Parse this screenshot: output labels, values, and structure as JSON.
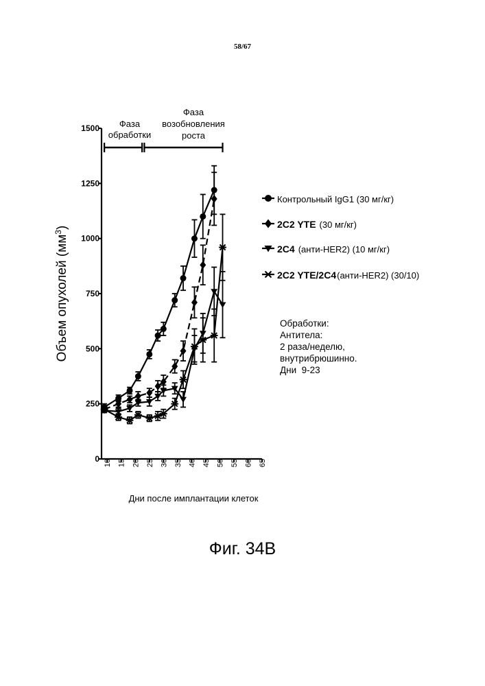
{
  "page_number": "58/67",
  "figure_caption": "Фиг. 34В",
  "notes": {
    "line1": "Обработки:",
    "line2": "Антитела:",
    "line3": "2 раза/неделю,",
    "line4": "внутрибрюшинно.",
    "line5_a": "Дни",
    "line5_b": "9-23"
  },
  "phases": {
    "treatment_line1": "Фаза",
    "treatment_line2": "обработки",
    "regrowth_line1": "Фаза",
    "regrowth_line2": "возобновления",
    "regrowth_line3": "роста",
    "treatment_days": [
      9,
      23
    ],
    "regrowth_days": [
      23,
      51
    ]
  },
  "chart_data": {
    "type": "line",
    "xlabel": "Дни после имплантации клеток",
    "ylabel": "Объем опухолей (мм³)",
    "ylabel_main": "Объем опухолей (мм",
    "ylabel_sup": "3",
    "ylabel_close": ")",
    "xlim": [
      8,
      65
    ],
    "ylim": [
      0,
      1500
    ],
    "xticks": [
      10,
      15,
      20,
      25,
      30,
      35,
      40,
      45,
      50,
      55,
      60,
      65
    ],
    "yticks": [
      0,
      250,
      500,
      750,
      1000,
      1250,
      1500
    ],
    "grid": false,
    "legend_position": "right",
    "series": [
      {
        "legend_main": "Контрольный IgG1 (30 мг/кг)",
        "legend_rest": "",
        "marker": "circle",
        "dash": false,
        "x": [
          9,
          14,
          18,
          21,
          25,
          28,
          30,
          34,
          37,
          41,
          44,
          48
        ],
        "y": [
          235,
          275,
          310,
          375,
          475,
          560,
          590,
          720,
          820,
          1000,
          1100,
          1220
        ],
        "err": [
          15,
          15,
          15,
          20,
          20,
          25,
          30,
          30,
          55,
          85,
          100,
          110
        ]
      },
      {
        "legend_main": "2C2 YTE",
        "legend_rest": "(30 мг/кг)",
        "marker": "diamond",
        "dash": true,
        "x": [
          9,
          14,
          18,
          21,
          25,
          28,
          30,
          34,
          37,
          41,
          44,
          48
        ],
        "y": [
          225,
          250,
          270,
          285,
          300,
          330,
          350,
          420,
          490,
          710,
          880,
          1180
        ],
        "err": [
          10,
          15,
          15,
          20,
          20,
          25,
          30,
          30,
          45,
          70,
          90,
          120
        ]
      },
      {
        "legend_main": "2C4",
        "legend_rest": "(анти-HER2) (10 мг/кг)",
        "marker": "triangle-down",
        "dash": false,
        "x": [
          9,
          14,
          18,
          21,
          25,
          28,
          30,
          34,
          37,
          41,
          44,
          48,
          51
        ],
        "y": [
          220,
          215,
          230,
          255,
          260,
          285,
          310,
          320,
          270,
          500,
          570,
          760,
          700
        ],
        "err": [
          10,
          15,
          15,
          15,
          20,
          20,
          25,
          25,
          35,
          60,
          90,
          110,
          150
        ]
      },
      {
        "legend_main": "2C2 YTE/2C4",
        "legend_rest": "(анти-HER2) (30/10)",
        "marker": "star",
        "dash": false,
        "x": [
          9,
          14,
          18,
          21,
          25,
          28,
          30,
          34,
          37,
          41,
          44,
          48,
          51
        ],
        "y": [
          225,
          190,
          175,
          200,
          185,
          195,
          205,
          250,
          360,
          510,
          540,
          560,
          960
        ],
        "err": [
          10,
          15,
          15,
          15,
          15,
          20,
          20,
          25,
          40,
          80,
          100,
          120,
          150
        ]
      }
    ]
  }
}
